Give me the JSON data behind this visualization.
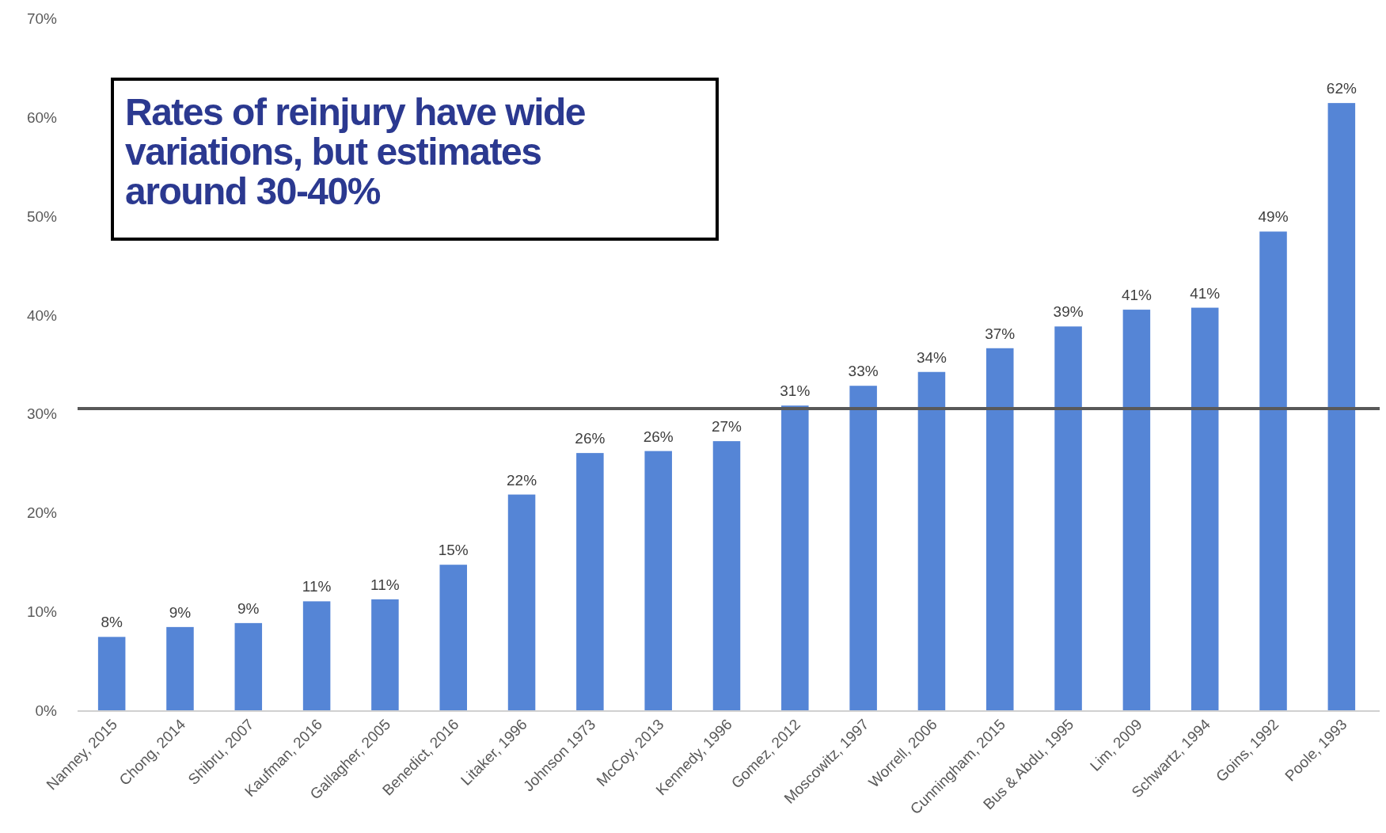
{
  "chart_data": {
    "type": "bar",
    "annotations": [
      "Rates of reinjury have wide variations, but estimates around 30-40%"
    ],
    "categories": [
      "Nanney, 2015",
      "Chong, 2014",
      "Shibru, 2007",
      "Kaufman, 2016",
      "Gallagher, 2005",
      "Benedict, 2016",
      "Litaker, 1996",
      "Johnson 1973",
      "McCoy, 2013",
      "Kennedy, 1996",
      "Gomez, 2012",
      "Moscowitz, 1997",
      "Worrell, 2006",
      "Cunningham, 2015",
      "Bus & Abdu, 1995",
      "Lim, 2009",
      "Schwartz, 1994",
      "Goins, 1992",
      "Poole, 1993"
    ],
    "values": [
      7.5,
      8.5,
      8.9,
      11.1,
      11.3,
      14.8,
      21.9,
      26.1,
      26.3,
      27.3,
      30.9,
      32.9,
      34.3,
      36.7,
      38.9,
      40.6,
      40.8,
      48.5,
      61.5
    ],
    "value_labels": [
      "8%",
      "9%",
      "9%",
      "11%",
      "11%",
      "15%",
      "22%",
      "26%",
      "26%",
      "27%",
      "31%",
      "33%",
      "34%",
      "37%",
      "39%",
      "41%",
      "41%",
      "49%",
      "62%"
    ],
    "color": "#5585d6",
    "ylim": [
      0,
      70
    ],
    "yticks": [
      {
        "value": 0,
        "label": "0%"
      },
      {
        "value": 10,
        "label": "10%"
      },
      {
        "value": 20,
        "label": "20%"
      },
      {
        "value": 30,
        "label": "30%"
      },
      {
        "value": 40,
        "label": "40%"
      },
      {
        "value": 50,
        "label": "50%"
      },
      {
        "value": 60,
        "label": "60%"
      },
      {
        "value": 70,
        "label": "70%"
      }
    ],
    "ref_lines": [
      {
        "axis": "y",
        "value": 30.6,
        "color": "#595959"
      }
    ],
    "grid": false
  }
}
